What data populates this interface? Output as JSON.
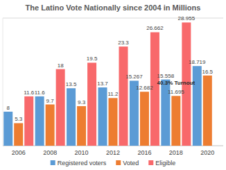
{
  "chart_data": {
    "type": "bar",
    "title": "The Latino Vote Nationally since 2004 in Millions",
    "categories": [
      "2006",
      "2008",
      "2010",
      "2012",
      "2016",
      "2018",
      "2020"
    ],
    "series": [
      {
        "name": "Registered voters",
        "color": "#5b9bd5",
        "values": [
          8.0,
          11.6,
          13.5,
          13.7,
          15.267,
          15.558,
          18.719
        ]
      },
      {
        "name": "Voted",
        "color": "#ed7d31",
        "values": [
          5.3,
          9.7,
          9.3,
          11.2,
          12.682,
          11.695,
          16.5
        ]
      },
      {
        "name": "Eligible",
        "color": "#f8696b",
        "values": [
          11.6,
          18,
          19.5,
          23.3,
          26.662,
          28.955,
          null
        ]
      }
    ],
    "ylim": [
      0,
      30
    ],
    "data_labels": true,
    "tick_labels": "x",
    "legend": "bottom",
    "annotations": [
      {
        "text": "40.3% Turnout",
        "category": "2018"
      }
    ]
  }
}
